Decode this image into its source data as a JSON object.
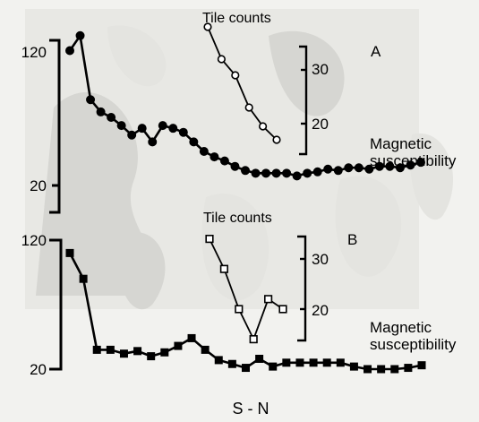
{
  "chart_data": [
    {
      "panel_letter": "A",
      "type": "line",
      "series": [
        {
          "name": "Magnetic susceptibility",
          "marker": "filled-circle",
          "y": [
            119,
            130,
            83,
            74,
            70,
            64,
            57,
            62,
            52,
            64,
            62,
            59,
            52,
            45,
            41,
            38,
            34,
            31,
            29,
            29,
            29,
            29,
            27,
            29,
            30,
            32,
            31,
            33,
            33,
            32,
            34,
            34,
            33,
            35,
            37
          ]
        },
        {
          "name": "Tile counts",
          "marker": "open-circle",
          "y": [
            38,
            32,
            29,
            23,
            19.5,
            17
          ]
        }
      ],
      "y_ticks": [
        120,
        20
      ],
      "inset_ticks": [
        30,
        20
      ]
    },
    {
      "panel_letter": "B",
      "type": "line",
      "series": [
        {
          "name": "Magnetic susceptibility",
          "marker": "filled-square",
          "y": [
            110,
            90,
            35,
            35,
            32,
            34,
            30,
            33,
            38,
            44,
            35,
            27,
            24,
            21,
            28,
            22,
            25,
            25,
            25,
            25,
            25,
            22,
            20,
            20,
            20,
            21,
            23
          ]
        },
        {
          "name": "Tile counts",
          "marker": "open-square",
          "y": [
            34,
            28,
            20,
            14,
            22,
            20
          ]
        }
      ],
      "y_ticks": [
        120,
        20
      ],
      "inset_ticks": [
        30,
        20
      ]
    }
  ],
  "xlabel": "S - N"
}
